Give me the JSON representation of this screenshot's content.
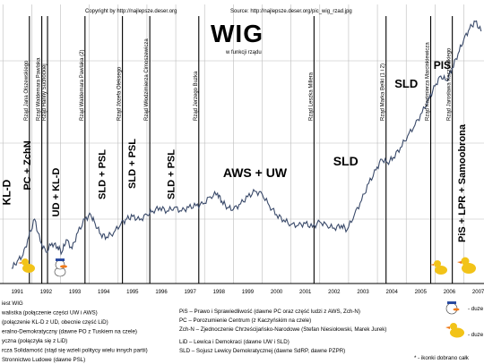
{
  "header": {
    "copyright": "Copyright by http://najlepsze.deser.org",
    "source": "Source: http://najlepsze.deser.org/pic_wig_rzad.jpg",
    "title": "WIG",
    "subtitle": "w funkcji rządu"
  },
  "colors": {
    "line": "#3a4a6a",
    "grid": "#bcbcbc",
    "divider": "#000000",
    "duck": "#f2c318",
    "beak": "#f07a1a"
  },
  "governments": [
    {
      "label": "Rząd Jana Olszewskiego",
      "year": 1991.92
    },
    {
      "label": "Rząd Waldemara Pawlaka",
      "year": 1992.35
    },
    {
      "label": "Rząd Hanny Suchockiej",
      "year": 1992.55
    },
    {
      "label": "Rząd Waldemara Pawlaka (2)",
      "year": 1993.85
    },
    {
      "label": "Rząd Józefa Oleksego",
      "year": 1995.15
    },
    {
      "label": "Rząd Włodzimierza Cimoszewicza",
      "year": 1996.1
    },
    {
      "label": "Rząd Jerzego Buzka",
      "year": 1997.8
    },
    {
      "label": "Rząd Leszka Millera",
      "year": 2001.8
    },
    {
      "label": "Rząd Marka Belki (1 i 2)",
      "year": 2004.3
    },
    {
      "label": "Rząd Kazimierza Marcinkiewicza",
      "year": 2005.85
    },
    {
      "label": "Rząd Jarosława Kaczyńskiego",
      "year": 2006.6
    }
  ],
  "coalitions": [
    {
      "label": "KL-D",
      "year": 1991.25,
      "y": 215,
      "size": 12,
      "rot": -90
    },
    {
      "label": "PC + ZchN",
      "year": 1991.95,
      "y": 185,
      "size": 11,
      "rot": -90
    },
    {
      "label": "UD + KL-D",
      "year": 1992.95,
      "y": 215,
      "size": 11,
      "rot": -90
    },
    {
      "label": "SLD + PSL",
      "year": 1994.55,
      "y": 195,
      "size": 11,
      "rot": -90
    },
    {
      "label": "SLD + PSL",
      "year": 1995.6,
      "y": 183,
      "size": 11,
      "rot": -90
    },
    {
      "label": "SLD + PSL",
      "year": 1996.95,
      "y": 195,
      "size": 11,
      "rot": -90
    },
    {
      "label": "AWS + UW",
      "year": 1999.75,
      "y": 198,
      "size": 14,
      "rot": 0
    },
    {
      "label": "SLD",
      "year": 2002.9,
      "y": 185,
      "size": 14,
      "rot": 0
    },
    {
      "label": "SLD",
      "year": 2005.0,
      "y": 98,
      "size": 13,
      "rot": 0
    },
    {
      "label": "PIS",
      "year": 2006.25,
      "y": 77,
      "size": 12,
      "rot": 0
    },
    {
      "label": "PiS + LPR + Samoobrona",
      "year": 2007.05,
      "y": 205,
      "size": 11,
      "rot": -90
    }
  ],
  "chart_data": {
    "type": "line",
    "title": "WIG",
    "subtitle": "w funkcji rządu",
    "xlabel": "",
    "ylabel": "",
    "xlim": [
      1990.9,
      2007.7
    ],
    "x_tick_labels": [
      "1991",
      "1992",
      "1993",
      "1994",
      "1995",
      "1996",
      "1997",
      "1998",
      "1999",
      "2000",
      "2001",
      "2002",
      "2003",
      "2004",
      "2005",
      "2006",
      "2007"
    ],
    "grid": true,
    "series": [
      {
        "values": [
          [
            1991.3,
            300
          ],
          [
            1991.5,
            292
          ],
          [
            1991.7,
            285
          ],
          [
            1991.9,
            265
          ],
          [
            1992.1,
            245
          ],
          [
            1992.3,
            270
          ],
          [
            1992.5,
            282
          ],
          [
            1992.7,
            272
          ],
          [
            1992.9,
            276
          ],
          [
            1993.05,
            282
          ],
          [
            1993.2,
            268
          ],
          [
            1993.4,
            278
          ],
          [
            1993.6,
            260
          ],
          [
            1993.85,
            245
          ],
          [
            1994.05,
            240
          ],
          [
            1994.2,
            250
          ],
          [
            1994.4,
            262
          ],
          [
            1994.6,
            265
          ],
          [
            1994.85,
            260
          ],
          [
            1995.1,
            250
          ],
          [
            1995.3,
            245
          ],
          [
            1995.5,
            242
          ],
          [
            1995.75,
            246
          ],
          [
            1996.0,
            240
          ],
          [
            1996.2,
            236
          ],
          [
            1996.45,
            232
          ],
          [
            1996.7,
            236
          ],
          [
            1996.95,
            232
          ],
          [
            1997.2,
            236
          ],
          [
            1997.45,
            232
          ],
          [
            1997.7,
            230
          ],
          [
            1997.95,
            228
          ],
          [
            1998.2,
            220
          ],
          [
            1998.45,
            216
          ],
          [
            1998.6,
            225
          ],
          [
            1998.8,
            232
          ],
          [
            1999.0,
            234
          ],
          [
            1999.25,
            228
          ],
          [
            1999.5,
            220
          ],
          [
            1999.75,
            214
          ],
          [
            2000.0,
            217
          ],
          [
            2000.25,
            230
          ],
          [
            2000.5,
            240
          ],
          [
            2000.75,
            246
          ],
          [
            2001.0,
            251
          ],
          [
            2001.25,
            252
          ],
          [
            2001.5,
            250
          ],
          [
            2001.75,
            254
          ],
          [
            2002.0,
            248
          ],
          [
            2002.25,
            252
          ],
          [
            2002.5,
            255
          ],
          [
            2002.75,
            252
          ],
          [
            2002.95,
            257
          ],
          [
            2003.2,
            240
          ],
          [
            2003.45,
            224
          ],
          [
            2003.7,
            205
          ],
          [
            2003.95,
            190
          ],
          [
            2004.15,
            178
          ],
          [
            2004.35,
            182
          ],
          [
            2004.55,
            176
          ],
          [
            2004.8,
            165
          ],
          [
            2005.05,
            152
          ],
          [
            2005.3,
            140
          ],
          [
            2005.55,
            126
          ],
          [
            2005.8,
            110
          ],
          [
            2006.0,
            96
          ],
          [
            2006.2,
            85
          ],
          [
            2006.4,
            90
          ],
          [
            2006.6,
            76
          ],
          [
            2006.8,
            60
          ],
          [
            2007.0,
            44
          ],
          [
            2007.2,
            32
          ],
          [
            2007.4,
            24
          ],
          [
            2007.6,
            35
          ]
        ]
      }
    ]
  },
  "legend": {
    "left": [
      "iest WIG",
      "walistka (połączenie części UW i AWS)",
      "(połączenie KL-D z UD, obecnie część LiD)",
      "eralno-Demokratyczny (dawne PO z Tuskiem na czele)",
      "yczna (połączyła się z LiD)",
      "rcza Solidarność (stąd się wzieli politycy wielu innych partii)",
      "Stronnictwo Ludowe (dawne PSL)"
    ],
    "right": [
      "PiS – Prawo i Sprawiedliwość (dawne PC oraz część ludzi z AWS, Zch-N)",
      "PC – Porozumienie Centrum (z Kaczyńskim na czele)",
      "Zch-N – Zjednoczenie Chrześcijańsko-Narodowe (Stefan Niesiołowski, Marek Jurek)",
      "LiD – Lewica i Demokraci (dawne UW i SLD)",
      "SLD – Sojusz Lewicy Demokratycznej (dawne SdRP, dawne PZPR)"
    ],
    "duze1": "- duze",
    "duze2": "- duze",
    "note": "* - ikonki dobrano całk"
  }
}
